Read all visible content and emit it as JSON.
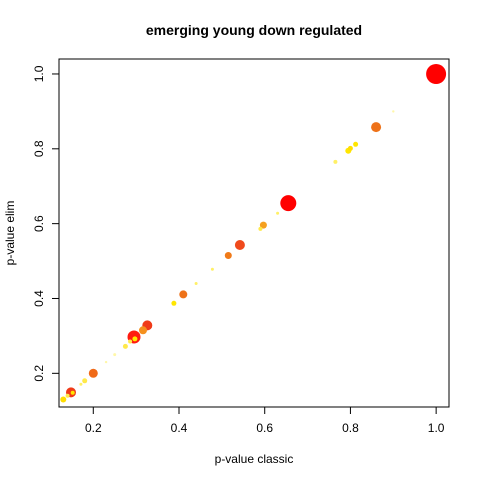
{
  "chart_data": {
    "type": "scatter",
    "title": "emerging young down regulated",
    "xlabel": "p-value classic",
    "ylabel": "p-value elim",
    "xlim": [
      0.12,
      1.03
    ],
    "ylim": [
      0.11,
      1.04
    ],
    "xticks": [
      0.2,
      0.4,
      0.6,
      0.8,
      1.0
    ],
    "xtick_labels": [
      "0.2",
      "0.4",
      "0.6",
      "0.8",
      "1.0"
    ],
    "yticks": [
      0.2,
      0.4,
      0.6,
      0.8,
      1.0
    ],
    "ytick_labels": [
      "0.2",
      "0.4",
      "0.6",
      "0.8",
      "1.0"
    ],
    "grid": false,
    "legend": "none",
    "colors": {
      "red": "#ff0000",
      "orangered": "#f0401a",
      "orange": "#ee7219",
      "amber": "#f5a623",
      "yellow": "#ffdd00",
      "lightyellow": "#fff066",
      "paleyellow": "#fff7a8"
    },
    "points": [
      {
        "x": 1.0,
        "y": 1.0,
        "size": 10,
        "color": "#ff0000"
      },
      {
        "x": 0.655,
        "y": 0.655,
        "size": 8,
        "color": "#ff0000"
      },
      {
        "x": 0.86,
        "y": 0.858,
        "size": 5,
        "color": "#ee7219"
      },
      {
        "x": 0.542,
        "y": 0.543,
        "size": 5,
        "color": "#f04a1c"
      },
      {
        "x": 0.515,
        "y": 0.515,
        "size": 3.5,
        "color": "#f07a19"
      },
      {
        "x": 0.597,
        "y": 0.596,
        "size": 3.5,
        "color": "#f5a01f"
      },
      {
        "x": 0.41,
        "y": 0.411,
        "size": 4,
        "color": "#ee7219"
      },
      {
        "x": 0.326,
        "y": 0.328,
        "size": 5,
        "color": "#f03a18"
      },
      {
        "x": 0.316,
        "y": 0.315,
        "size": 4,
        "color": "#f5901e"
      },
      {
        "x": 0.295,
        "y": 0.297,
        "size": 6.5,
        "color": "#ff1a10"
      },
      {
        "x": 0.297,
        "y": 0.292,
        "size": 2.5,
        "color": "#ffe600"
      },
      {
        "x": 0.2,
        "y": 0.2,
        "size": 4.5,
        "color": "#f06a18"
      },
      {
        "x": 0.148,
        "y": 0.149,
        "size": 5,
        "color": "#f03a18"
      },
      {
        "x": 0.152,
        "y": 0.148,
        "size": 2,
        "color": "#ffe600"
      },
      {
        "x": 0.13,
        "y": 0.13,
        "size": 3,
        "color": "#ffdd00"
      },
      {
        "x": 0.14,
        "y": 0.14,
        "size": 2,
        "color": "#ffe94a"
      },
      {
        "x": 0.18,
        "y": 0.18,
        "size": 2.5,
        "color": "#ffe94a"
      },
      {
        "x": 0.171,
        "y": 0.171,
        "size": 1.5,
        "color": "#fff066"
      },
      {
        "x": 0.275,
        "y": 0.272,
        "size": 2.5,
        "color": "#ffe94a"
      },
      {
        "x": 0.286,
        "y": 0.285,
        "size": 2,
        "color": "#ffe94a"
      },
      {
        "x": 0.25,
        "y": 0.25,
        "size": 1.5,
        "color": "#fff7a8"
      },
      {
        "x": 0.23,
        "y": 0.23,
        "size": 1.2,
        "color": "#fff7a8"
      },
      {
        "x": 0.388,
        "y": 0.387,
        "size": 2.5,
        "color": "#ffe600"
      },
      {
        "x": 0.44,
        "y": 0.44,
        "size": 1.5,
        "color": "#fff066"
      },
      {
        "x": 0.478,
        "y": 0.478,
        "size": 1.5,
        "color": "#fff066"
      },
      {
        "x": 0.59,
        "y": 0.586,
        "size": 2,
        "color": "#ffe94a"
      },
      {
        "x": 0.63,
        "y": 0.628,
        "size": 1.5,
        "color": "#fff066"
      },
      {
        "x": 0.765,
        "y": 0.765,
        "size": 2,
        "color": "#fff066"
      },
      {
        "x": 0.795,
        "y": 0.795,
        "size": 3,
        "color": "#ffe600"
      },
      {
        "x": 0.8,
        "y": 0.801,
        "size": 2.5,
        "color": "#ffdd00"
      },
      {
        "x": 0.812,
        "y": 0.812,
        "size": 2.5,
        "color": "#ffe600"
      },
      {
        "x": 0.9,
        "y": 0.9,
        "size": 1.2,
        "color": "#fff7a8"
      }
    ]
  }
}
